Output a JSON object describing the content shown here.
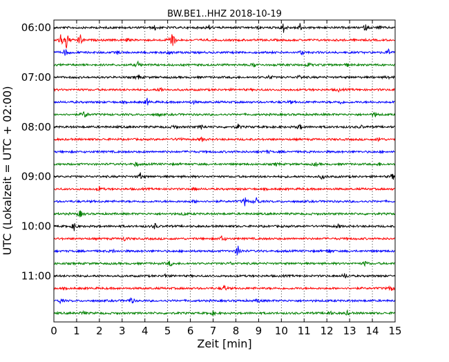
{
  "chart_data": {
    "type": "line",
    "title": "BW.BE1..HHZ 2018-10-19",
    "xlabel": "Zeit  [min]",
    "ylabel": "UTC (Lokalzeit = UTC + 02:00)",
    "xlim": [
      0,
      15
    ],
    "x_ticks": [
      "0",
      "1",
      "2",
      "3",
      "4",
      "5",
      "6",
      "7",
      "8",
      "9",
      "10",
      "11",
      "12",
      "13",
      "14",
      "15"
    ],
    "y_ticks": [
      {
        "label": "06:00",
        "trace_index": 0
      },
      {
        "label": "07:00",
        "trace_index": 4
      },
      {
        "label": "08:00",
        "trace_index": 8
      },
      {
        "label": "09:00",
        "trace_index": 12
      },
      {
        "label": "10:00",
        "trace_index": 16
      },
      {
        "label": "11:00",
        "trace_index": 20
      }
    ],
    "grid": "vertical dotted",
    "series_colors": [
      "#000000",
      "#ff0000",
      "#0000ff",
      "#008000"
    ],
    "traces": [
      {
        "start": "06:00",
        "events": [
          [
            4.45,
            0.5
          ],
          [
            6.8,
            0.6
          ],
          [
            9.0,
            0.3
          ],
          [
            10.1,
            1.0
          ],
          [
            10.8,
            1.0
          ],
          [
            13.7,
            0.6
          ],
          [
            14.3,
            0.4
          ]
        ]
      },
      {
        "start": "06:15",
        "events": [
          [
            0.3,
            1.2
          ],
          [
            0.55,
            2.0
          ],
          [
            1.15,
            1.3
          ],
          [
            5.2,
            2.6
          ],
          [
            3.2,
            0.3
          ]
        ]
      },
      {
        "start": "06:30",
        "events": [
          [
            0.5,
            0.8
          ],
          [
            2.8,
            0.3
          ],
          [
            5.1,
            0.5
          ],
          [
            10.9,
            0.5
          ],
          [
            14.7,
            0.6
          ]
        ]
      },
      {
        "start": "06:45",
        "events": [
          [
            3.7,
            0.6
          ],
          [
            8.8,
            0.5
          ],
          [
            11.2,
            0.5
          ],
          [
            12.9,
            0.3
          ]
        ]
      },
      {
        "start": "07:00",
        "events": [
          [
            3.7,
            0.6
          ],
          [
            9.5,
            0.5
          ],
          [
            10.8,
            0.4
          ],
          [
            14.7,
            0.3
          ]
        ]
      },
      {
        "start": "07:15",
        "events": [
          [
            4.7,
            0.6
          ],
          [
            12.5,
            0.3
          ]
        ]
      },
      {
        "start": "07:30",
        "events": [
          [
            4.1,
            0.7
          ],
          [
            6.1,
            0.4
          ],
          [
            10.4,
            0.3
          ],
          [
            12.6,
            0.3
          ]
        ]
      },
      {
        "start": "07:45",
        "events": [
          [
            1.35,
            0.9
          ],
          [
            4.6,
            0.3
          ],
          [
            14.1,
            0.6
          ]
        ]
      },
      {
        "start": "08:00",
        "events": [
          [
            5.3,
            0.4
          ],
          [
            6.5,
            0.5
          ],
          [
            8.1,
            0.5
          ],
          [
            10.8,
            0.6
          ],
          [
            13.5,
            0.3
          ]
        ]
      },
      {
        "start": "08:15",
        "events": [
          [
            5.5,
            0.4
          ],
          [
            6.5,
            0.5
          ],
          [
            14.3,
            0.5
          ]
        ]
      },
      {
        "start": "08:30",
        "events": [
          [
            9.4,
            0.3
          ]
        ]
      },
      {
        "start": "08:45",
        "events": [
          [
            3.6,
            0.5
          ],
          [
            9.8,
            0.4
          ],
          [
            11.5,
            0.4
          ],
          [
            14.3,
            0.3
          ]
        ]
      },
      {
        "start": "09:00",
        "events": [
          [
            3.8,
            0.7
          ],
          [
            11.8,
            0.5
          ],
          [
            14.9,
            0.6
          ]
        ]
      },
      {
        "start": "09:15",
        "events": [
          [
            2.0,
            0.5
          ],
          [
            6.2,
            0.3
          ]
        ]
      },
      {
        "start": "09:30",
        "events": [
          [
            8.4,
            0.9
          ],
          [
            8.9,
            0.9
          ],
          [
            6.2,
            0.3
          ]
        ]
      },
      {
        "start": "09:45",
        "events": [
          [
            1.15,
            0.8
          ],
          [
            5.7,
            0.3
          ]
        ]
      },
      {
        "start": "10:00",
        "events": [
          [
            0.9,
            0.9
          ],
          [
            4.45,
            0.6
          ],
          [
            12.5,
            0.4
          ]
        ]
      },
      {
        "start": "10:15",
        "events": [
          [
            3.1,
            0.5
          ],
          [
            7.4,
            0.7
          ]
        ]
      },
      {
        "start": "10:30",
        "events": [
          [
            2.6,
            0.3
          ],
          [
            8.1,
            1.3
          ],
          [
            12.1,
            0.5
          ]
        ]
      },
      {
        "start": "10:45",
        "events": [
          [
            5.1,
            0.6
          ],
          [
            7.8,
            0.3
          ],
          [
            13.7,
            0.5
          ]
        ]
      },
      {
        "start": "11:00",
        "events": [
          [
            4.9,
            0.3
          ],
          [
            12.8,
            0.6
          ]
        ]
      },
      {
        "start": "11:15",
        "events": [
          [
            7.5,
            0.6
          ],
          [
            14.8,
            0.6
          ]
        ]
      },
      {
        "start": "11:30",
        "events": [
          [
            0.3,
            0.5
          ],
          [
            3.4,
            0.8
          ],
          [
            9.0,
            0.5
          ]
        ]
      },
      {
        "start": "11:45",
        "events": [
          [
            1.3,
            0.5
          ],
          [
            7.0,
            0.4
          ],
          [
            12.1,
            0.6
          ],
          [
            12.9,
            0.4
          ]
        ]
      }
    ]
  }
}
